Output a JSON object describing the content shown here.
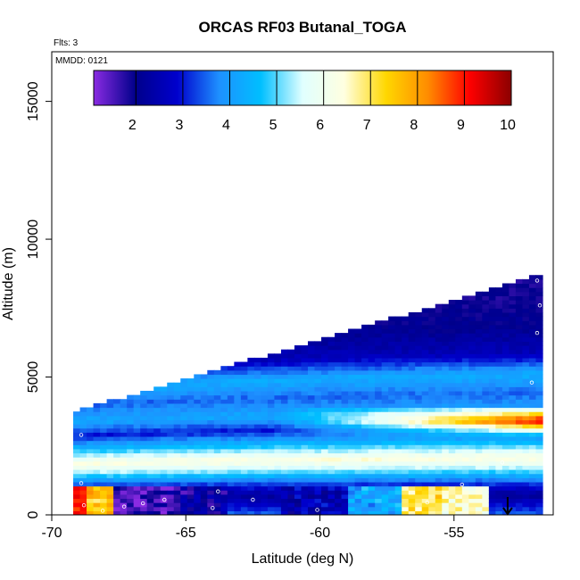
{
  "chart_data": {
    "type": "heatmap",
    "title": "ORCAS RF03 Butanal_TOGA",
    "flights_label": "Flts: 3",
    "date_label": "MMDD: 0121",
    "xlabel": "Latitude (deg N)",
    "ylabel": "Altitude (m)",
    "xlim": [
      -70,
      -51.3
    ],
    "ylim": [
      0,
      16800
    ],
    "xticks": [
      -70,
      -65,
      -60,
      -55
    ],
    "xtick_labels": [
      "-70",
      "-65",
      "-60",
      "-55"
    ],
    "yticks": [
      0,
      5000,
      10000,
      15000
    ],
    "ytick_labels": [
      "0",
      "5000",
      "10000",
      "15000"
    ],
    "colorbar": {
      "range": [
        1.1,
        10
      ],
      "ticks": [
        2,
        3,
        4,
        5,
        6,
        7,
        8,
        9,
        10
      ],
      "tick_labels": [
        "2",
        "3",
        "4",
        "5",
        "6",
        "7",
        "8",
        "9",
        "10"
      ],
      "stops": [
        "#8a2be2",
        "#00008b",
        "#0000cd",
        "#1e90ff",
        "#00bfff",
        "#e0ffff",
        "#ffffe0",
        "#ffd700",
        "#ff8c00",
        "#ff0000",
        "#8b0000"
      ]
    },
    "coverage": {
      "lat_start": -69.2,
      "lat_end": -51.7,
      "lat_step": 0.25,
      "alt_step": 150,
      "top_alt_start": 3700,
      "top_alt_end": 8700
    },
    "vertical_profile": [
      {
        "alt": 0,
        "value": 3.4
      },
      {
        "alt": 600,
        "value": 2.2
      },
      {
        "alt": 1000,
        "value": 3.3
      },
      {
        "alt": 1500,
        "value": 5.5
      },
      {
        "alt": 1800,
        "value": 6.4
      },
      {
        "alt": 2300,
        "value": 4.6
      },
      {
        "alt": 2800,
        "value": 3.0
      },
      {
        "alt": 3300,
        "value": 4.2
      },
      {
        "alt": 3900,
        "value": 3.5
      },
      {
        "alt": 4500,
        "value": 4.3
      },
      {
        "alt": 5200,
        "value": 2.6
      },
      {
        "alt": 6000,
        "value": 2.1
      },
      {
        "alt": 7000,
        "value": 1.9
      },
      {
        "alt": 8700,
        "value": 1.8
      }
    ],
    "plume": {
      "lat_start": -62,
      "lat_end": -51.8,
      "alt_start": 3100,
      "alt_end": 3600,
      "peak_value": 9.6
    },
    "boundary_layer": [
      {
        "lat": -69,
        "alt": 200,
        "value": 9.2
      },
      {
        "lat": -68.5,
        "alt": 400,
        "value": 7.5
      },
      {
        "lat": -67,
        "alt": 500,
        "value": 1.5
      },
      {
        "lat": -66,
        "alt": 400,
        "value": 1.7
      },
      {
        "lat": -65,
        "alt": 500,
        "value": 2.1
      },
      {
        "lat": -60,
        "alt": 300,
        "value": 2.5
      },
      {
        "lat": -58,
        "alt": 300,
        "value": 4.2
      },
      {
        "lat": -56,
        "alt": 350,
        "value": 7.0
      },
      {
        "lat": -55.3,
        "alt": 400,
        "value": 6.5
      }
    ],
    "sample_points": [
      {
        "lat": -68.8,
        "alt": 350
      },
      {
        "lat": -68.1,
        "alt": 150
      },
      {
        "lat": -67.3,
        "alt": 300
      },
      {
        "lat": -66.6,
        "alt": 420
      },
      {
        "lat": -64.0,
        "alt": 250
      },
      {
        "lat": -62.5,
        "alt": 550
      },
      {
        "lat": -60.1,
        "alt": 180
      },
      {
        "lat": -56.0,
        "alt": 450
      },
      {
        "lat": -54.7,
        "alt": 1100
      },
      {
        "lat": -53.2,
        "alt": 1900
      },
      {
        "lat": -52.1,
        "alt": 4800
      },
      {
        "lat": -51.9,
        "alt": 6600
      },
      {
        "lat": -51.8,
        "alt": 7600
      },
      {
        "lat": -51.9,
        "alt": 8500
      },
      {
        "lat": -68.9,
        "alt": 1150
      },
      {
        "lat": -68.9,
        "alt": 2900
      },
      {
        "lat": -65.8,
        "alt": 550
      },
      {
        "lat": -63.8,
        "alt": 850
      }
    ],
    "marker": {
      "lat": -53.0,
      "symbol": "down-arrow"
    }
  }
}
